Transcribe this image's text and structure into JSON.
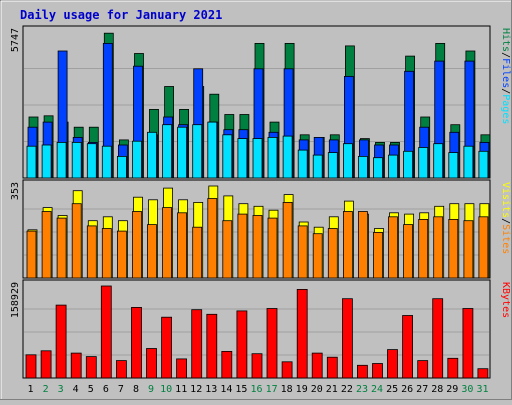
{
  "colors": {
    "background": "#c0c0c0",
    "panel": "#c0c0c0",
    "grid": "#a0a0a0",
    "title": "#0000cc",
    "hits": "#008040",
    "files": "#0040ff",
    "pages": "#00e0ff",
    "visits": "#ffff00",
    "sites": "#ff8000",
    "kbytes": "#ff0000",
    "weekend": "#008040",
    "weekday": "#000000"
  },
  "chart_data": {
    "type": "bar",
    "title": "Daily usage for January 2021",
    "categories": [
      "1",
      "2",
      "3",
      "4",
      "5",
      "6",
      "7",
      "8",
      "9",
      "10",
      "11",
      "12",
      "13",
      "14",
      "15",
      "16",
      "17",
      "18",
      "19",
      "20",
      "21",
      "22",
      "23",
      "24",
      "25",
      "26",
      "27",
      "28",
      "29",
      "30",
      "31"
    ],
    "weekend_days": [
      "2",
      "3",
      "9",
      "10",
      "16",
      "17",
      "23",
      "24",
      "30",
      "31"
    ],
    "panels": [
      {
        "name": "requests",
        "ymax_label": "5747",
        "ymax": 5747,
        "right_label": [
          "Pages",
          "/",
          "Files",
          "/",
          "Hits"
        ],
        "series": [
          {
            "name": "Hits",
            "values": [
              2400,
              2450,
              2200,
              2000,
              2000,
              5700,
              1500,
              4900,
              2700,
              3600,
              2700,
              3600,
              3300,
              2500,
              2500,
              5300,
              2200,
              5300,
              1700,
              1600,
              1700,
              5200,
              1550,
              1400,
              1400,
              4800,
              2400,
              5300,
              2100,
              5000,
              1700
            ]
          },
          {
            "name": "Files",
            "values": [
              2000,
              2200,
              5000,
              1600,
              1400,
              5300,
              1300,
              4400,
              1700,
              2400,
              2100,
              4300,
              2200,
              1900,
              1900,
              4300,
              1800,
              4300,
              1500,
              1600,
              1500,
              4000,
              1500,
              1300,
              1300,
              4200,
              2000,
              4600,
              1800,
              4600,
              1400
            ]
          },
          {
            "name": "Pages",
            "values": [
              1250,
              1300,
              1400,
              1400,
              1350,
              1250,
              850,
              1450,
              1800,
              2100,
              2000,
              2100,
              2200,
              1700,
              1550,
              1550,
              1600,
              1650,
              1100,
              900,
              1000,
              1350,
              850,
              800,
              900,
              1050,
              1200,
              1350,
              1000,
              1250,
              1050
            ]
          }
        ]
      },
      {
        "name": "visitors",
        "ymax_label": "353",
        "ymax": 353,
        "right_label": [
          "Sites",
          "/",
          "Visits"
        ],
        "series": [
          {
            "name": "Visits",
            "values": [
              185,
              270,
              240,
              335,
              220,
              235,
              220,
              310,
              300,
              345,
              300,
              290,
              358,
              315,
              285,
              275,
              260,
              320,
              215,
              195,
              235,
              295,
              245,
              190,
              250,
              245,
              250,
              275,
              285,
              285,
              285
            ]
          },
          {
            "name": "Sites",
            "values": [
              180,
              255,
              230,
              285,
              200,
              190,
              180,
              255,
              205,
              270,
              250,
              195,
              305,
              220,
              245,
              240,
              230,
              290,
              200,
              170,
              190,
              255,
              255,
              175,
              235,
              205,
              225,
              235,
              225,
              220,
              235
            ]
          }
        ]
      },
      {
        "name": "kbytes",
        "ymax_label": "158929",
        "ymax": 158929,
        "right_label": [
          "KBytes"
        ],
        "series": [
          {
            "name": "KBytes",
            "values": [
              40000,
              47000,
              126000,
              43000,
              37000,
              163000,
              30000,
              122000,
              51000,
              105000,
              33000,
              118000,
              110000,
              46000,
              116000,
              42000,
              120000,
              28000,
              153000,
              43000,
              36000,
              137000,
              22000,
              25000,
              49000,
              108000,
              30000,
              137000,
              34000,
              120000,
              16000
            ]
          }
        ]
      }
    ]
  }
}
